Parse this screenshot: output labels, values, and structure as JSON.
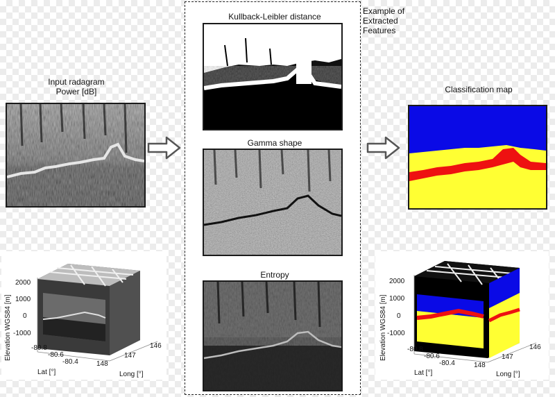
{
  "left": {
    "title_line1": "Input radagram",
    "title_line2": "Power [dB]"
  },
  "middle": {
    "note_line1": "Example of",
    "note_line2": "Extracted",
    "note_line3": "Features",
    "panel1_title": "Kullback-Leibler distance",
    "panel2_title": "Gamma shape",
    "panel3_title": "Entropy"
  },
  "right": {
    "title": "Classification map"
  },
  "plot3d": {
    "ylabel": "Elevation WGS84 [m]",
    "yticks": [
      "2000",
      "1000",
      "0",
      "-1000"
    ],
    "lat_label": "Lat [°]",
    "lat_ticks": [
      "-80.8",
      "-80.6",
      "-80.4"
    ],
    "long_label": "Long [°]",
    "long_ticks": [
      "148",
      "147",
      "146"
    ]
  },
  "colors": {
    "class_blue": "#0a0ae6",
    "class_yellow": "#ffff33",
    "class_red": "#ee1111",
    "class_black": "#000000"
  },
  "icons": {
    "arrow_left": "hollow-right-arrow-icon",
    "arrow_right": "hollow-right-arrow-icon"
  }
}
